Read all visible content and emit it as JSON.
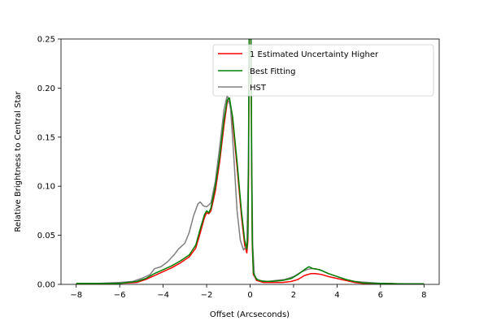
{
  "chart_data": {
    "type": "line",
    "title": "",
    "xlabel": "Offset (Arcseconds)",
    "ylabel": "Relative Brightness to Central Star",
    "xlim": [
      -8.7,
      8.7
    ],
    "ylim": [
      0,
      0.25
    ],
    "xticks": [
      -8,
      -6,
      -4,
      -2,
      0,
      2,
      4,
      6,
      8
    ],
    "xtick_labels": [
      "−8",
      "−6",
      "−4",
      "−2",
      "0",
      "2",
      "4",
      "6",
      "8"
    ],
    "yticks": [
      0,
      0.05,
      0.1,
      0.15,
      0.2,
      0.25
    ],
    "ytick_labels": [
      "0.00",
      "0.05",
      "0.10",
      "0.15",
      "0.20",
      "0.25"
    ],
    "grid": false,
    "legend_placement": "top-right",
    "series": [
      {
        "name": "1 Estimated Uncertainty Higher",
        "color": "#ff0000",
        "points": [
          [
            -8.0,
            0.001
          ],
          [
            -7.0,
            0.001
          ],
          [
            -6.0,
            0.001
          ],
          [
            -5.2,
            0.002
          ],
          [
            -4.8,
            0.005
          ],
          [
            -4.4,
            0.009
          ],
          [
            -4.0,
            0.013
          ],
          [
            -3.6,
            0.017
          ],
          [
            -3.2,
            0.022
          ],
          [
            -2.8,
            0.028
          ],
          [
            -2.5,
            0.037
          ],
          [
            -2.3,
            0.052
          ],
          [
            -2.1,
            0.068
          ],
          [
            -2.0,
            0.073
          ],
          [
            -1.9,
            0.072
          ],
          [
            -1.8,
            0.075
          ],
          [
            -1.6,
            0.095
          ],
          [
            -1.4,
            0.125
          ],
          [
            -1.2,
            0.162
          ],
          [
            -1.05,
            0.186
          ],
          [
            -0.95,
            0.187
          ],
          [
            -0.8,
            0.165
          ],
          [
            -0.6,
            0.12
          ],
          [
            -0.4,
            0.07
          ],
          [
            -0.25,
            0.04
          ],
          [
            -0.15,
            0.032
          ],
          [
            -0.1,
            0.045
          ],
          [
            -0.07,
            0.12
          ],
          [
            -0.04,
            0.26
          ],
          [
            0.04,
            0.26
          ],
          [
            0.07,
            0.12
          ],
          [
            0.1,
            0.04
          ],
          [
            0.15,
            0.01
          ],
          [
            0.3,
            0.004
          ],
          [
            0.6,
            0.002
          ],
          [
            1.0,
            0.002
          ],
          [
            1.5,
            0.002
          ],
          [
            1.9,
            0.003
          ],
          [
            2.2,
            0.005
          ],
          [
            2.5,
            0.009
          ],
          [
            2.8,
            0.011
          ],
          [
            3.0,
            0.011
          ],
          [
            3.3,
            0.01
          ],
          [
            3.6,
            0.008
          ],
          [
            4.0,
            0.006
          ],
          [
            4.4,
            0.004
          ],
          [
            4.8,
            0.002
          ],
          [
            5.2,
            0.001
          ],
          [
            6.0,
            0.001
          ],
          [
            7.0,
            0.0005
          ],
          [
            8.0,
            0.0005
          ]
        ]
      },
      {
        "name": "Best Fitting",
        "color": "#008000",
        "points": [
          [
            -8.0,
            0.001
          ],
          [
            -7.0,
            0.001
          ],
          [
            -6.0,
            0.001
          ],
          [
            -5.2,
            0.003
          ],
          [
            -4.8,
            0.006
          ],
          [
            -4.4,
            0.011
          ],
          [
            -4.0,
            0.015
          ],
          [
            -3.6,
            0.019
          ],
          [
            -3.2,
            0.024
          ],
          [
            -2.8,
            0.03
          ],
          [
            -2.5,
            0.04
          ],
          [
            -2.3,
            0.056
          ],
          [
            -2.1,
            0.071
          ],
          [
            -2.0,
            0.075
          ],
          [
            -1.9,
            0.073
          ],
          [
            -1.8,
            0.078
          ],
          [
            -1.6,
            0.1
          ],
          [
            -1.4,
            0.13
          ],
          [
            -1.2,
            0.168
          ],
          [
            -1.05,
            0.188
          ],
          [
            -0.95,
            0.19
          ],
          [
            -0.8,
            0.17
          ],
          [
            -0.6,
            0.125
          ],
          [
            -0.4,
            0.075
          ],
          [
            -0.25,
            0.045
          ],
          [
            -0.15,
            0.036
          ],
          [
            -0.1,
            0.05
          ],
          [
            -0.07,
            0.13
          ],
          [
            -0.04,
            0.26
          ],
          [
            0.04,
            0.26
          ],
          [
            0.07,
            0.13
          ],
          [
            0.1,
            0.045
          ],
          [
            0.15,
            0.012
          ],
          [
            0.3,
            0.005
          ],
          [
            0.6,
            0.003
          ],
          [
            1.0,
            0.003
          ],
          [
            1.5,
            0.004
          ],
          [
            1.9,
            0.006
          ],
          [
            2.2,
            0.01
          ],
          [
            2.5,
            0.015
          ],
          [
            2.7,
            0.018
          ],
          [
            2.9,
            0.016
          ],
          [
            3.2,
            0.015
          ],
          [
            3.6,
            0.011
          ],
          [
            4.0,
            0.008
          ],
          [
            4.4,
            0.005
          ],
          [
            4.8,
            0.003
          ],
          [
            5.2,
            0.0015
          ],
          [
            6.0,
            0.001
          ],
          [
            7.0,
            0.0005
          ],
          [
            8.0,
            0.0005
          ]
        ]
      },
      {
        "name": "HST",
        "color": "#808080",
        "points": [
          [
            -8.0,
            0.001
          ],
          [
            -7.0,
            0.001
          ],
          [
            -6.0,
            0.002
          ],
          [
            -5.4,
            0.003
          ],
          [
            -5.0,
            0.006
          ],
          [
            -4.6,
            0.01
          ],
          [
            -4.4,
            0.016
          ],
          [
            -4.1,
            0.018
          ],
          [
            -3.8,
            0.023
          ],
          [
            -3.5,
            0.03
          ],
          [
            -3.3,
            0.036
          ],
          [
            -3.0,
            0.042
          ],
          [
            -2.8,
            0.053
          ],
          [
            -2.6,
            0.07
          ],
          [
            -2.4,
            0.082
          ],
          [
            -2.3,
            0.084
          ],
          [
            -2.15,
            0.08
          ],
          [
            -2.0,
            0.079
          ],
          [
            -1.8,
            0.083
          ],
          [
            -1.6,
            0.105
          ],
          [
            -1.4,
            0.14
          ],
          [
            -1.2,
            0.178
          ],
          [
            -1.05,
            0.193
          ],
          [
            -0.9,
            0.18
          ],
          [
            -0.75,
            0.13
          ],
          [
            -0.6,
            0.075
          ],
          [
            -0.45,
            0.045
          ],
          [
            -0.3,
            0.035
          ],
          [
            -0.15,
            0.04
          ],
          [
            -0.08,
            0.12
          ],
          [
            -0.04,
            0.26
          ],
          [
            0.04,
            0.26
          ],
          [
            0.08,
            0.12
          ],
          [
            0.12,
            0.04
          ],
          [
            0.2,
            0.008
          ],
          [
            0.4,
            0.004
          ],
          [
            0.8,
            0.003
          ],
          [
            1.2,
            0.004
          ],
          [
            1.6,
            0.005
          ],
          [
            2.0,
            0.008
          ],
          [
            2.3,
            0.012
          ],
          [
            2.6,
            0.015
          ],
          [
            2.8,
            0.016
          ],
          [
            3.0,
            0.016
          ],
          [
            3.3,
            0.014
          ],
          [
            3.6,
            0.011
          ],
          [
            4.0,
            0.008
          ],
          [
            4.4,
            0.005
          ],
          [
            4.8,
            0.003
          ],
          [
            5.4,
            0.002
          ],
          [
            6.0,
            0.001
          ],
          [
            7.0,
            0.0005
          ],
          [
            8.0,
            0.0005
          ]
        ]
      }
    ]
  }
}
